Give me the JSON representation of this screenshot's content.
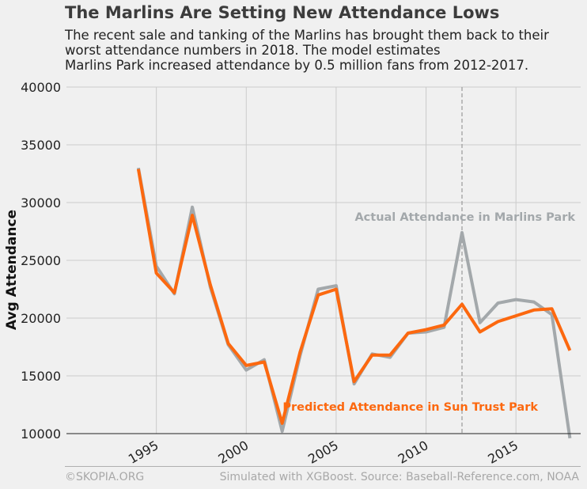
{
  "title": "The Marlins Are Setting New Attendance Lows",
  "subtitle_lines": [
    "The recent sale and tanking of the Marlins has brought them back to their",
    "worst attendance numbers in 2018. The model estimates",
    "Marlins Park increased attendance by 0.5 million fans from 2012-2017."
  ],
  "footer": {
    "left": "©SKOPIA.ORG",
    "right": "Simulated with XGBoost. Source: Baseball-Reference.com, NOAA"
  },
  "colors": {
    "actual": "#a3a8ab",
    "predicted": "#fc680f",
    "grid": "#cbcbcb",
    "background": "#f0f0f0"
  },
  "chart_data": {
    "type": "line",
    "title": "The Marlins Are Setting New Attendance Lows",
    "xlabel": "",
    "ylabel": "Avg Attendance",
    "xlim": [
      1990,
      2018.6
    ],
    "ylim": [
      10000,
      40000
    ],
    "xticks": [
      1995,
      2000,
      2005,
      2010,
      2015
    ],
    "yticks": [
      10000,
      15000,
      20000,
      25000,
      30000,
      35000,
      40000
    ],
    "grid": true,
    "vline": {
      "x": 2012,
      "style": "dashed"
    },
    "x": [
      1994,
      1995,
      1996,
      1997,
      1998,
      1999,
      2000,
      2001,
      2002,
      2003,
      2004,
      2005,
      2006,
      2007,
      2008,
      2009,
      2010,
      2011,
      2012,
      2013,
      2014,
      2015,
      2016,
      2017,
      2018
    ],
    "series": [
      {
        "name": "Actual Attendance in Marlins Park",
        "color": "#a3a8ab",
        "values": [
          33000,
          24500,
          22100,
          29600,
          22700,
          17700,
          15500,
          16400,
          10200,
          16800,
          22500,
          22800,
          14300,
          16900,
          16600,
          18700,
          18800,
          19200,
          27400,
          19600,
          21300,
          21600,
          21400,
          20300,
          9600
        ]
      },
      {
        "name": "Predicted Attendance in Sun Trust Park",
        "color": "#fc680f",
        "values": [
          32900,
          23900,
          22200,
          28900,
          22900,
          17800,
          15900,
          16200,
          10900,
          17100,
          22000,
          22500,
          14500,
          16800,
          16800,
          18700,
          19000,
          19400,
          21200,
          18800,
          19700,
          20200,
          20700,
          20800,
          17200
        ]
      }
    ],
    "annotations": [
      {
        "text": "Actual Attendance in Marlins Park",
        "series": 0
      },
      {
        "text": "Predicted Attendance in Sun Trust Park",
        "series": 1
      }
    ]
  }
}
